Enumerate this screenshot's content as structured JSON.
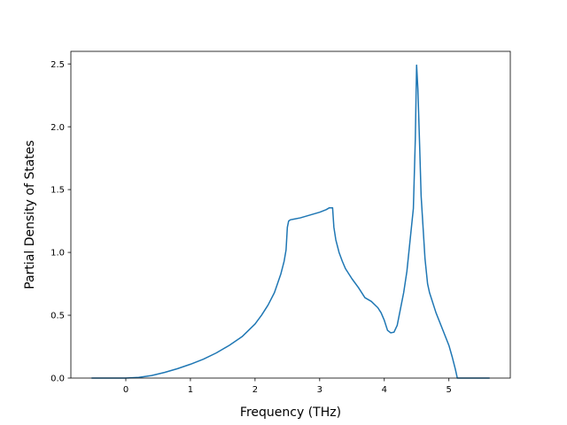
{
  "chart_data": {
    "type": "line",
    "title": "",
    "xlabel": "Frequency (THz)",
    "ylabel": "Partial Density of States",
    "xlim": [
      -0.85,
      5.95
    ],
    "ylim": [
      0.0,
      2.6
    ],
    "x_ticks": [
      0,
      1,
      2,
      3,
      4,
      5
    ],
    "x_tick_labels": [
      "0",
      "1",
      "2",
      "3",
      "4",
      "5"
    ],
    "y_ticks": [
      0.0,
      0.5,
      1.0,
      1.5,
      2.0,
      2.5
    ],
    "y_tick_labels": [
      "0.0",
      "0.5",
      "1.0",
      "1.5",
      "2.0",
      "2.5"
    ],
    "grid": false,
    "legend": "none",
    "line_color": "#1f77b4",
    "series": [
      {
        "x": [
          -0.53,
          -0.3,
          0.0,
          0.2,
          0.4,
          0.6,
          0.8,
          1.0,
          1.2,
          1.4,
          1.6,
          1.8,
          2.0,
          2.1,
          2.2,
          2.3,
          2.4,
          2.45,
          2.48,
          2.5,
          2.52,
          2.55,
          2.6,
          2.7,
          2.8,
          2.9,
          3.0,
          3.1,
          3.15,
          3.2,
          3.22,
          3.25,
          3.3,
          3.35,
          3.4,
          3.5,
          3.6,
          3.7,
          3.8,
          3.9,
          3.95,
          4.0,
          4.05,
          4.1,
          4.15,
          4.2,
          4.25,
          4.3,
          4.35,
          4.4,
          4.45,
          4.48,
          4.5,
          4.52,
          4.55,
          4.57,
          4.6,
          4.63,
          4.67,
          4.7,
          4.8,
          4.9,
          5.0,
          5.05,
          5.1,
          5.13,
          5.2,
          5.4,
          5.63
        ],
        "y": [
          0.0,
          0.0,
          0.0,
          0.005,
          0.02,
          0.045,
          0.075,
          0.11,
          0.15,
          0.2,
          0.26,
          0.33,
          0.43,
          0.5,
          0.58,
          0.68,
          0.83,
          0.93,
          1.02,
          1.2,
          1.25,
          1.26,
          1.265,
          1.275,
          1.29,
          1.305,
          1.32,
          1.34,
          1.355,
          1.355,
          1.2,
          1.1,
          1.0,
          0.93,
          0.87,
          0.79,
          0.72,
          0.64,
          0.61,
          0.56,
          0.52,
          0.46,
          0.38,
          0.36,
          0.365,
          0.42,
          0.55,
          0.68,
          0.85,
          1.1,
          1.35,
          1.9,
          2.49,
          2.3,
          1.8,
          1.45,
          1.2,
          0.95,
          0.75,
          0.68,
          0.52,
          0.39,
          0.26,
          0.17,
          0.07,
          0.0,
          0.0,
          0.0,
          0.0
        ]
      }
    ]
  }
}
